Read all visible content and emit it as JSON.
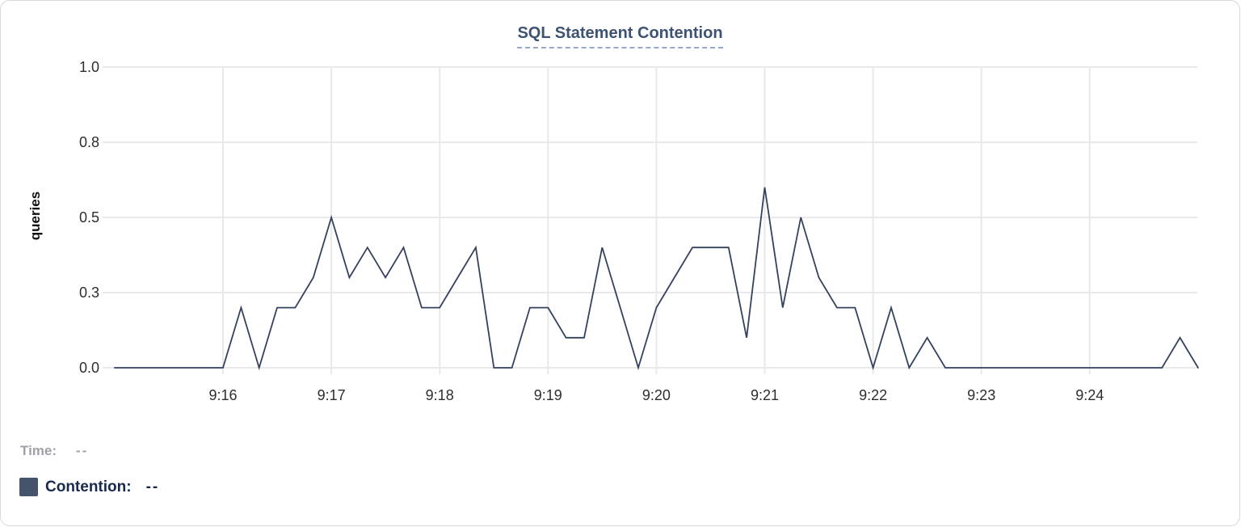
{
  "chart": {
    "title": "SQL Statement Contention"
  },
  "readout": {
    "time_label": "Time:",
    "time_value": "--",
    "contention_label": "Contention:",
    "contention_value": "--"
  },
  "colors": {
    "line": "#34425f",
    "grid": "#e9e9e9",
    "tick_text": "#2e2e2e",
    "title_text": "#3e5373",
    "title_underline": "#9ba6ce",
    "legend_time_text": "#9fa1a8",
    "legend_contention_text": "#19294e",
    "legend_swatch": "#46536c",
    "card_border": "#d9d9d9"
  },
  "chart_data": {
    "type": "line",
    "title": "SQL Statement Contention",
    "xlabel": "",
    "ylabel": "queries",
    "ylim": [
      0,
      1
    ],
    "grid": true,
    "x_tick_labels": [
      "9:16",
      "9:17",
      "9:18",
      "9:19",
      "9:20",
      "9:21",
      "9:22",
      "9:23",
      "9:24"
    ],
    "y_ticks": [
      {
        "label": "1.0",
        "value": 1.0
      },
      {
        "label": "0.8",
        "value": 0.75
      },
      {
        "label": "0.5",
        "value": 0.5
      },
      {
        "label": "0.3",
        "value": 0.25
      },
      {
        "label": "0.0",
        "value": 0.0
      }
    ],
    "x": [
      "9:15:00",
      "9:15:10",
      "9:15:20",
      "9:15:30",
      "9:15:40",
      "9:15:50",
      "9:16:00",
      "9:16:10",
      "9:16:20",
      "9:16:30",
      "9:16:40",
      "9:16:50",
      "9:17:00",
      "9:17:10",
      "9:17:20",
      "9:17:30",
      "9:17:40",
      "9:17:50",
      "9:18:00",
      "9:18:10",
      "9:18:20",
      "9:18:30",
      "9:18:40",
      "9:18:50",
      "9:19:00",
      "9:19:10",
      "9:19:20",
      "9:19:30",
      "9:19:40",
      "9:19:50",
      "9:20:00",
      "9:20:10",
      "9:20:20",
      "9:20:30",
      "9:20:40",
      "9:20:50",
      "9:21:00",
      "9:21:10",
      "9:21:20",
      "9:21:30",
      "9:21:40",
      "9:21:50",
      "9:22:00",
      "9:22:10",
      "9:22:20",
      "9:22:30",
      "9:22:40",
      "9:22:50",
      "9:23:00",
      "9:23:10",
      "9:23:20",
      "9:23:30",
      "9:23:40",
      "9:23:50",
      "9:24:00",
      "9:24:10",
      "9:24:20",
      "9:24:30",
      "9:24:40",
      "9:24:50",
      "9:25:00"
    ],
    "series": [
      {
        "name": "Contention",
        "color": "#34425f",
        "values": [
          0,
          0,
          0,
          0,
          0,
          0,
          0,
          0.2,
          0,
          0.2,
          0.2,
          0.3,
          0.5,
          0.3,
          0.4,
          0.3,
          0.4,
          0.2,
          0.2,
          0.3,
          0.4,
          0,
          0,
          0.2,
          0.2,
          0.1,
          0.1,
          0.4,
          0.2,
          0,
          0.2,
          0.3,
          0.4,
          0.4,
          0.4,
          0.1,
          0.6,
          0.2,
          0.5,
          0.3,
          0.2,
          0.2,
          0,
          0.2,
          0,
          0.1,
          0,
          0,
          0,
          0,
          0,
          0,
          0,
          0,
          0,
          0,
          0,
          0,
          0,
          0.1,
          0
        ]
      }
    ],
    "legend_position": "bottom-left"
  }
}
